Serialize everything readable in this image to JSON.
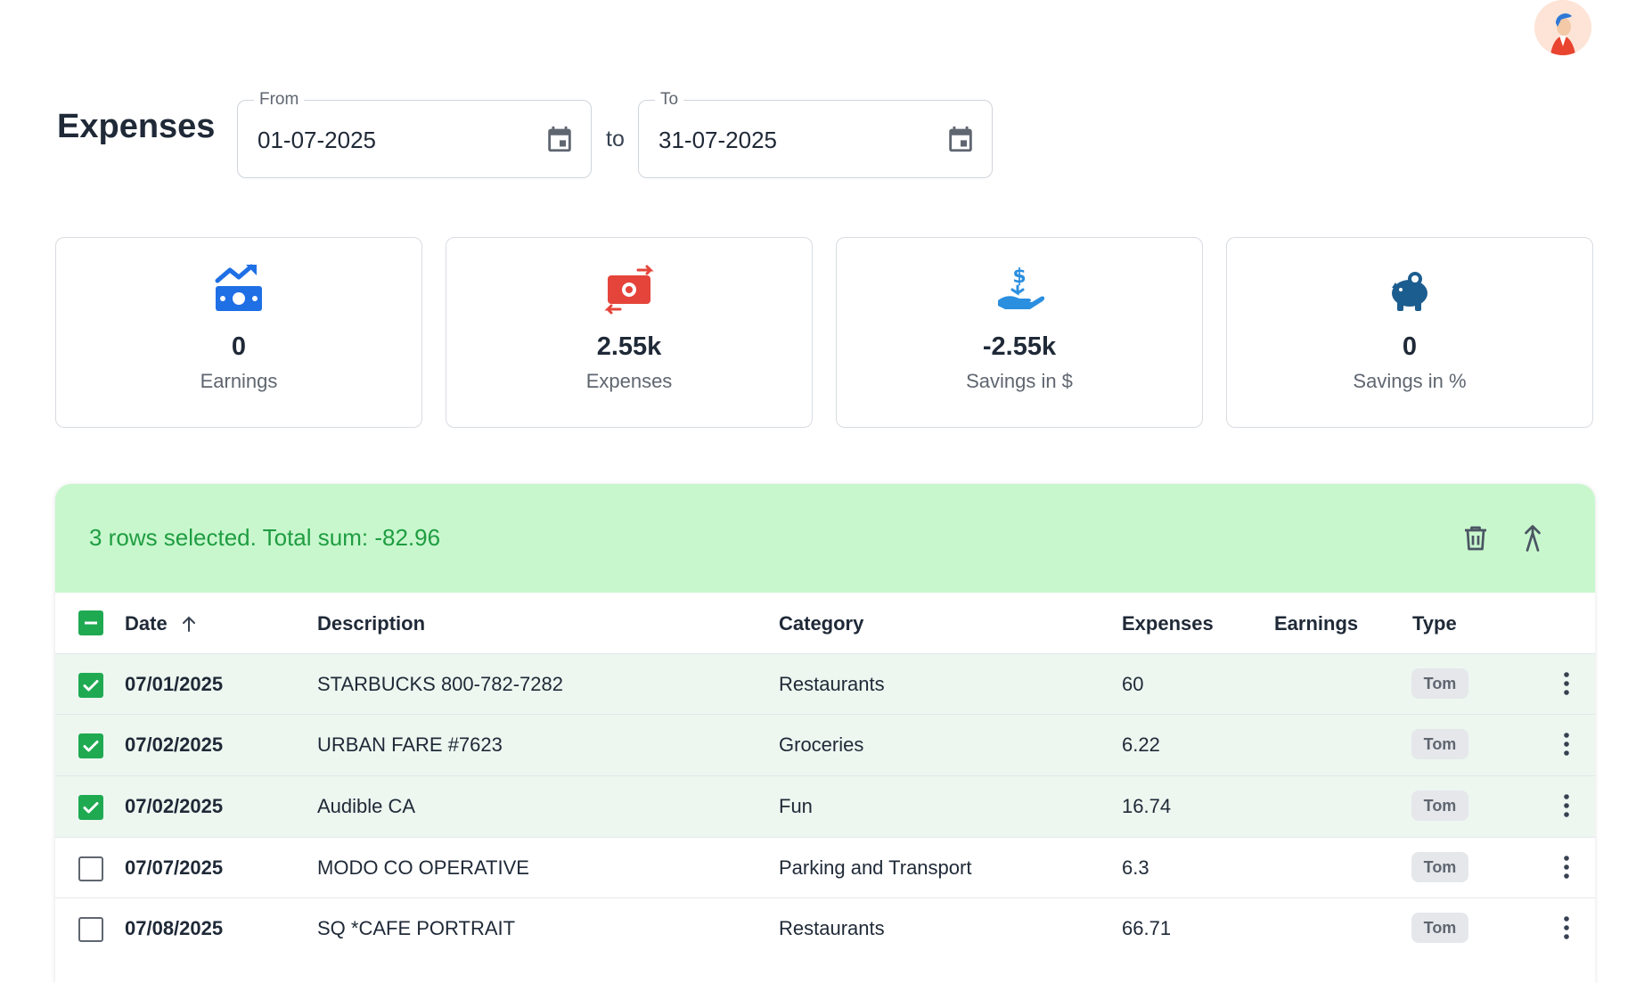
{
  "header": {
    "title": "Expenses",
    "from_label": "From",
    "from_value": "01-07-2025",
    "to_word": "to",
    "to_label": "To",
    "to_value": "31-07-2025"
  },
  "stats": [
    {
      "value": "0",
      "label": "Earnings",
      "icon": "earnings-trend-icon",
      "color": "#1f6fe5"
    },
    {
      "value": "2.55k",
      "label": "Expenses",
      "icon": "money-exchange-icon",
      "color": "#e5443a"
    },
    {
      "value": "-2.55k",
      "label": "Savings in $",
      "icon": "hand-dollar-icon",
      "color": "#2b8fe0"
    },
    {
      "value": "0",
      "label": "Savings in %",
      "icon": "piggy-bank-icon",
      "color": "#1c5d8f"
    }
  ],
  "selection": {
    "text": "3 rows selected. Total sum: -82.96"
  },
  "table": {
    "columns": {
      "date": "Date",
      "description": "Description",
      "category": "Category",
      "expenses": "Expenses",
      "earnings": "Earnings",
      "type": "Type"
    },
    "rows": [
      {
        "selected": true,
        "date": "07/01/2025",
        "description": "STARBUCKS 800-782-7282",
        "category": "Restaurants",
        "expenses": "60",
        "earnings": "",
        "type": "Tom"
      },
      {
        "selected": true,
        "date": "07/02/2025",
        "description": "URBAN FARE #7623",
        "category": "Groceries",
        "expenses": "6.22",
        "earnings": "",
        "type": "Tom"
      },
      {
        "selected": true,
        "date": "07/02/2025",
        "description": "Audible CA",
        "category": "Fun",
        "expenses": "16.74",
        "earnings": "",
        "type": "Tom"
      },
      {
        "selected": false,
        "date": "07/07/2025",
        "description": "MODO CO OPERATIVE",
        "category": "Parking and Transport",
        "expenses": "6.3",
        "earnings": "",
        "type": "Tom"
      },
      {
        "selected": false,
        "date": "07/08/2025",
        "description": "SQ *CAFE PORTRAIT",
        "category": "Restaurants",
        "expenses": "66.71",
        "earnings": "",
        "type": "Tom"
      }
    ]
  },
  "colors": {
    "selection_bg": "#c8f7cd",
    "selection_text": "#1f9d41",
    "checkbox_on": "#1faa52",
    "row_selected_bg": "#edf7f0"
  }
}
